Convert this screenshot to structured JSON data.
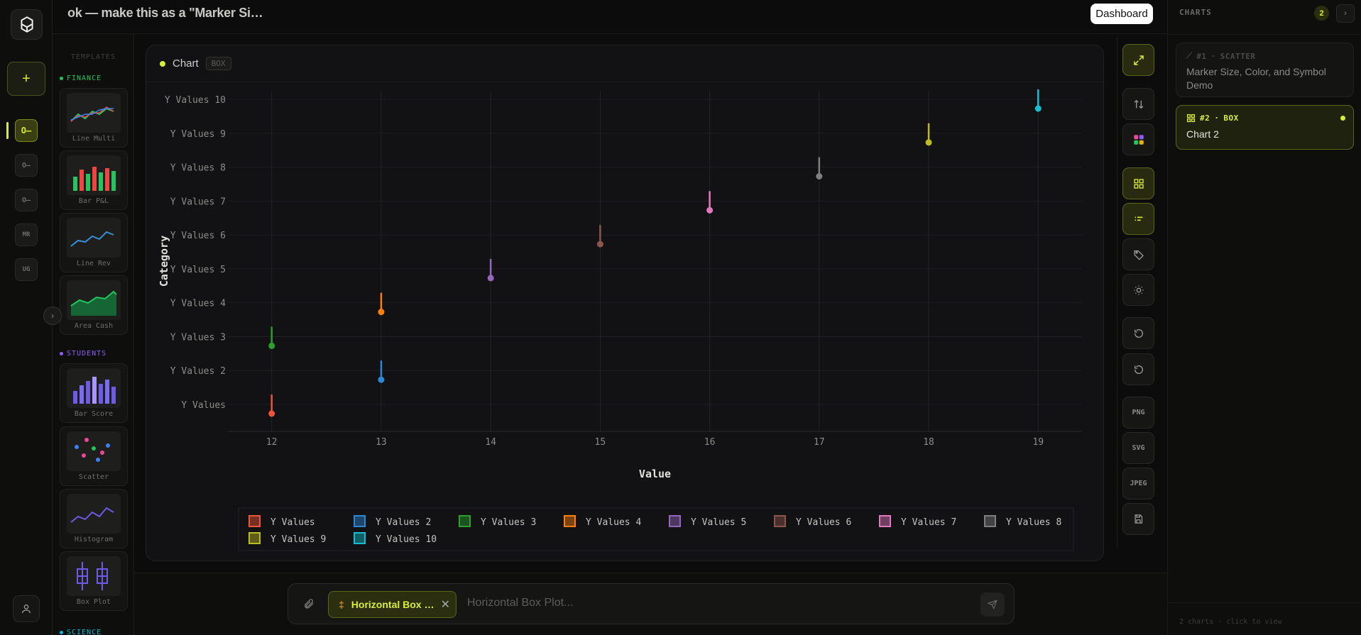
{
  "app": {
    "conversation_title": "ok — make this as a \"Marker Si…",
    "dashboard_label": "Dashboard"
  },
  "rail": {
    "new_label": "+",
    "items": [
      "",
      "",
      "",
      "MR",
      "UG"
    ]
  },
  "templates": {
    "title": "TEMPLATES",
    "sections": [
      {
        "name": "FINANCE",
        "color": "#22c55e",
        "cards": [
          "Line Multi",
          "Bar P&L",
          "Line Rev",
          "Area Cash"
        ]
      },
      {
        "name": "STUDENTS",
        "color": "#8b5cf6",
        "cards": [
          "Bar Score",
          "Scatter",
          "Histogram",
          "Box Plot"
        ]
      },
      {
        "name": "SCIENCE",
        "color": "#06b6d4",
        "cards": []
      }
    ]
  },
  "panel": {
    "title": "Chart",
    "badge": "BOX"
  },
  "chart_data": {
    "type": "box",
    "orientation": "horizontal",
    "xlabel": "Value",
    "ylabel": "Category",
    "xlim": [
      11.6,
      19.4
    ],
    "x_ticks": [
      12,
      13,
      14,
      15,
      16,
      17,
      18,
      19
    ],
    "categories": [
      "Y Values",
      "Y Values 2",
      "Y Values 3",
      "Y Values 4",
      "Y Values 5",
      "Y Values 6",
      "Y Values 7",
      "Y Values 8",
      "Y Values 9",
      "Y Values 10"
    ],
    "series": [
      {
        "name": "Y Values",
        "value": 12,
        "color": "#f0553a"
      },
      {
        "name": "Y Values 2",
        "value": 13,
        "color": "#2e86d6"
      },
      {
        "name": "Y Values 3",
        "value": 12,
        "color": "#2ca02c"
      },
      {
        "name": "Y Values 4",
        "value": 13,
        "color": "#ff7f0e"
      },
      {
        "name": "Y Values 5",
        "value": 14,
        "color": "#9467bd"
      },
      {
        "name": "Y Values 6",
        "value": 15,
        "color": "#8c564b"
      },
      {
        "name": "Y Values 7",
        "value": 16,
        "color": "#e377c2"
      },
      {
        "name": "Y Values 8",
        "value": 17,
        "color": "#7f7f7f"
      },
      {
        "name": "Y Values 9",
        "value": 18,
        "color": "#bcbd22"
      },
      {
        "name": "Y Values 10",
        "value": 19,
        "color": "#17becf"
      }
    ],
    "grid": true,
    "legend": "bottom"
  },
  "toolbar": {
    "export": [
      "PNG",
      "SVG",
      "JPEG"
    ]
  },
  "chat": {
    "chip_label": "Horizontal Box …",
    "placeholder": "Horizontal Box Plot..."
  },
  "right_panel": {
    "title": "CHARTS",
    "count": "2",
    "charts": [
      {
        "number": "#1",
        "type": "SCATTER",
        "name": "Marker Size, Color, and Symbol Demo"
      },
      {
        "number": "#2",
        "type": "BOX",
        "name": "Chart 2"
      }
    ],
    "footer": "2 charts · click to view"
  }
}
